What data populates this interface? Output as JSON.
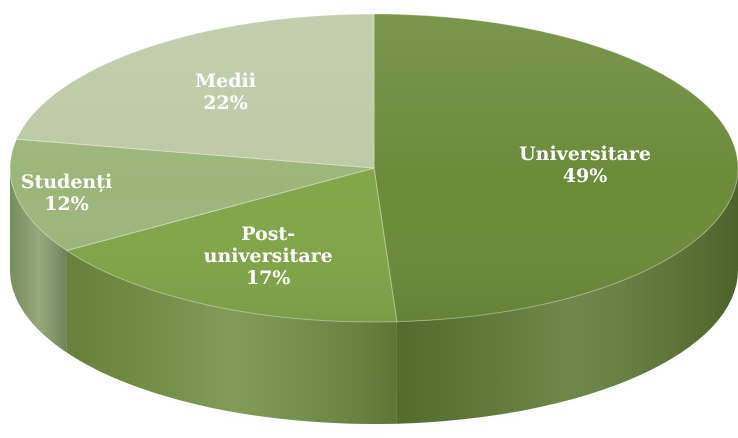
{
  "chart_data": {
    "type": "pie",
    "style": "3d",
    "slices": [
      {
        "label": "Universitare",
        "percent_label": "49%",
        "value": 49,
        "color": "#6b8b3a"
      },
      {
        "label": "Post-universitare",
        "label_lines": [
          "Post-",
          "universitare"
        ],
        "percent_label": "17%",
        "value": 17,
        "color": "#82a64a"
      },
      {
        "label": "Studenți",
        "percent_label": "12%",
        "value": 12,
        "color": "#9cb67a"
      },
      {
        "label": "Medii",
        "percent_label": "22%",
        "value": 22,
        "color": "#bccaa6"
      }
    ],
    "legend": "none"
  }
}
